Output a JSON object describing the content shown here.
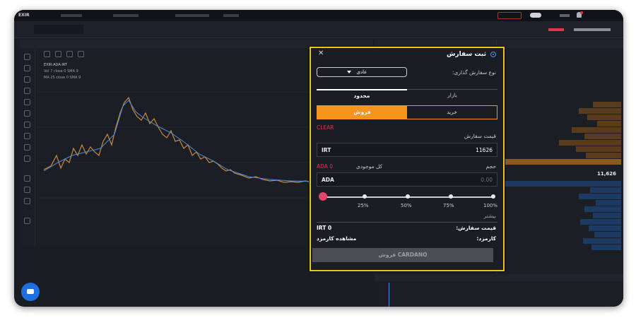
{
  "modal": {
    "title": "ثبت سفارش",
    "close_icon": "close-icon",
    "order_type_label": "نوع سفارش گذاری:",
    "order_type_value": "عادی",
    "tabs": {
      "limit": "محدود",
      "market": "بازار"
    },
    "sides": {
      "buy": "خرید",
      "sell": "فروش"
    },
    "clear_label": "CLEAR",
    "price_label": "قیمت سفارش",
    "price_currency": "IRT",
    "price_value": "11626",
    "volume_label": "حجم",
    "balance_label": "کل موجودی",
    "balance_value": "ADA 0",
    "volume_currency": "ADA",
    "volume_placeholder": "0.00",
    "slider": {
      "value_percent": 0,
      "stops": [
        "25%",
        "50%",
        "75%",
        "100%"
      ]
    },
    "summary_title": "بیشتر",
    "order_price_label": "قیمت سفارش:",
    "order_price_value": "IRT 0",
    "fee_label": "کارمزد:",
    "fee_value": "مشاهده کارمزد",
    "submit_label": "فروش CARDANO",
    "accent_color": "#f0c419",
    "sell_color": "#f7941d"
  },
  "background": {
    "symbol": "EXIR:ADA-IRT",
    "last_price": "11,626",
    "legend": [
      "Vol 7 close 0 SMA 9",
      "MA 25 close 0 SMA 9"
    ]
  }
}
